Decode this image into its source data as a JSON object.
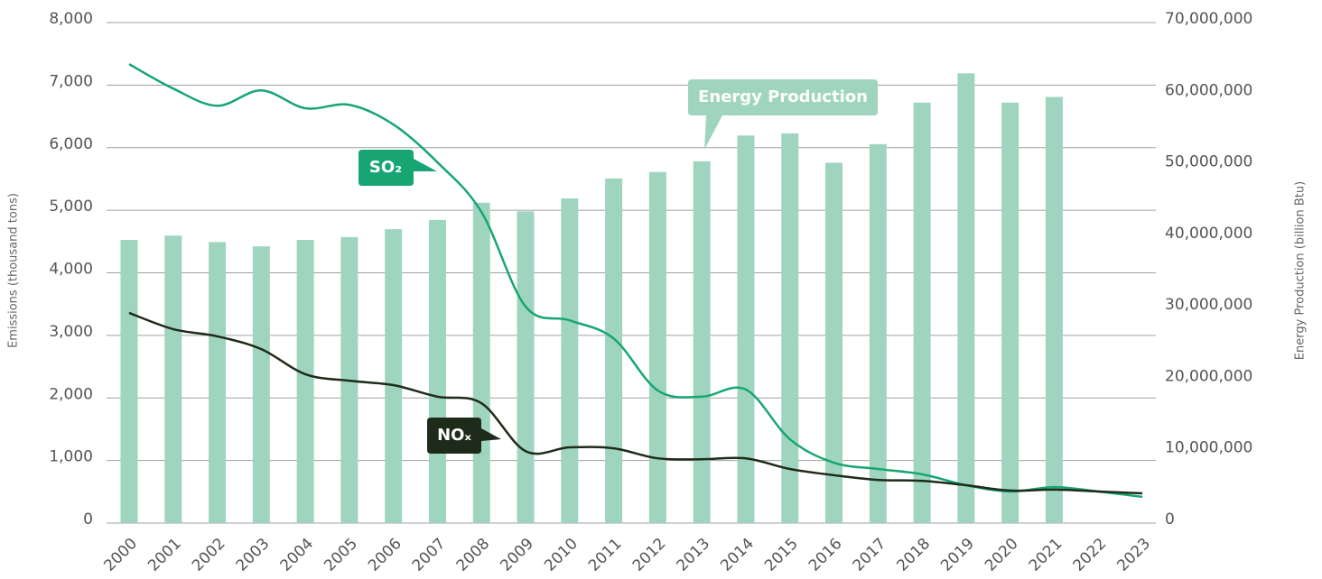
{
  "chart_data": {
    "type": "bar-line",
    "categories": [
      "2000",
      "2001",
      "2002",
      "2003",
      "2004",
      "2005",
      "2006",
      "2007",
      "2008",
      "2009",
      "2010",
      "2011",
      "2012",
      "2013",
      "2014",
      "2015",
      "2016",
      "2017",
      "2018",
      "2019",
      "2020",
      "2021",
      "2022",
      "2023"
    ],
    "ylabel": "Emissions (thousand tons)",
    "y2label": "Energy Production (billion Btu)",
    "ylim": [
      0,
      8000
    ],
    "yticks": [
      0,
      {
        "value": 1000,
        "label": "1,000"
      },
      {
        "value": 2000,
        "label": "2,000"
      },
      {
        "value": 3000,
        "label": "3,000"
      },
      {
        "value": 4000,
        "label": "4,000"
      },
      {
        "value": 5000,
        "label": "5,000"
      },
      {
        "value": 6000,
        "label": "6,000"
      },
      {
        "value": 7000,
        "label": "7,000"
      },
      {
        "value": 8000,
        "label": "8,000"
      }
    ],
    "y2lim": [
      0,
      70000000
    ],
    "y2ticks": [
      0,
      {
        "value": 10000000,
        "label": "10,000,000"
      },
      {
        "value": 20000000,
        "label": "20,000,000"
      },
      {
        "value": 30000000,
        "label": "30,000,000"
      },
      {
        "value": 40000000,
        "label": "40,000,000"
      },
      {
        "value": 50000000,
        "label": "50,000,000"
      },
      {
        "value": 60000000,
        "label": "60,000,000"
      },
      {
        "value": 70000000,
        "label": "70,000,000"
      }
    ],
    "grid": true,
    "series": [
      {
        "name": "Energy Production",
        "type": "bar",
        "axis": "y2",
        "color": "#9fd5bf",
        "values": [
          39600000,
          40200000,
          39300000,
          38700000,
          39600000,
          40000000,
          41100000,
          42400000,
          44800000,
          43600000,
          45400000,
          48200000,
          49100000,
          50600000,
          54200000,
          54500000,
          50400000,
          53000000,
          58800000,
          62900000,
          58800000,
          59600000,
          null,
          null
        ]
      },
      {
        "name": "SO₂",
        "type": "line",
        "color": "#17a673",
        "values": [
          7335,
          6945,
          6670,
          6915,
          6630,
          6685,
          6370,
          5765,
          4970,
          3460,
          3240,
          2950,
          2120,
          2020,
          2135,
          1340,
          965,
          865,
          780,
          605,
          505,
          575,
          505,
          420
        ]
      },
      {
        "name": "NOₓ",
        "type": "line",
        "color": "#1f2b1a",
        "values": [
          3360,
          3100,
          2985,
          2780,
          2380,
          2275,
          2205,
          2020,
          1915,
          1150,
          1210,
          1195,
          1035,
          1020,
          1035,
          865,
          765,
          690,
          675,
          605,
          520,
          535,
          505,
          475
        ]
      }
    ]
  }
}
